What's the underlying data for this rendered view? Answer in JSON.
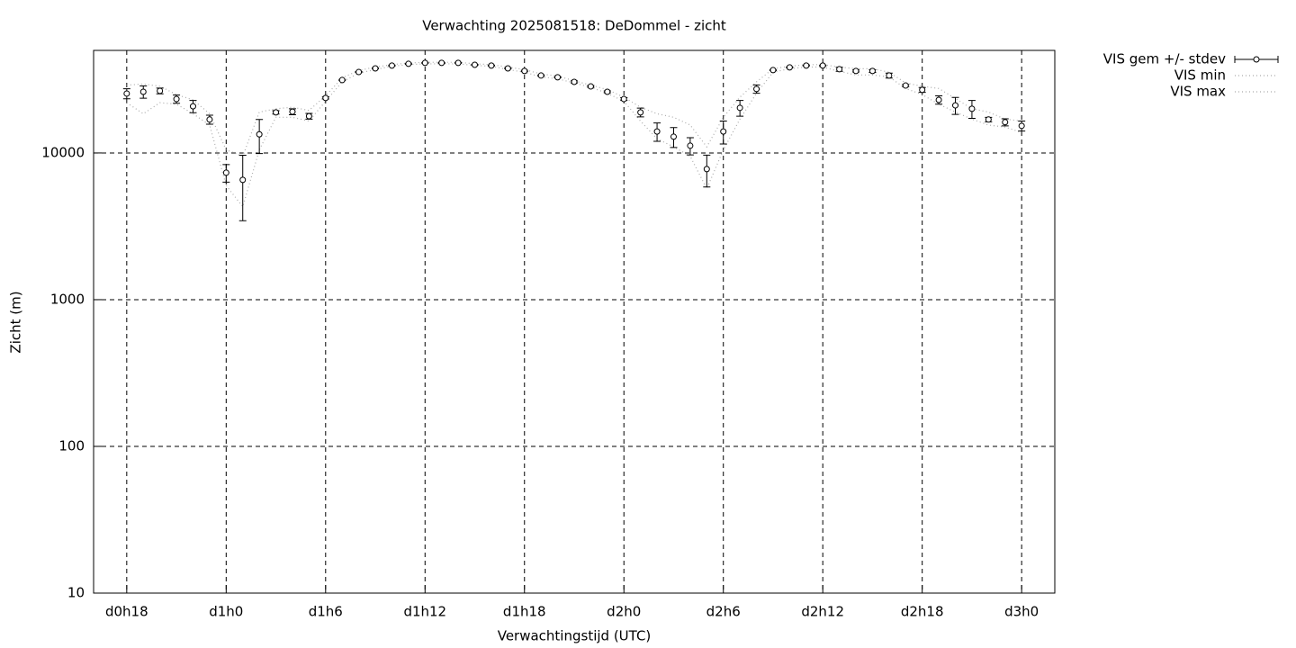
{
  "chart_data": {
    "type": "errorbar-line",
    "title": "Verwachting 2025081518: DeDommel - zicht",
    "x_label": "Verwachtingstijd (UTC)",
    "y_label": "Zicht (m)",
    "x": [
      18,
      19,
      20,
      21,
      22,
      23,
      24,
      25,
      26,
      27,
      28,
      29,
      30,
      31,
      32,
      33,
      34,
      35,
      36,
      37,
      38,
      39,
      40,
      41,
      42,
      43,
      44,
      45,
      46,
      47,
      48,
      49,
      50,
      51,
      52,
      53,
      54,
      55,
      56,
      57,
      58,
      59,
      60,
      61,
      62,
      63,
      64,
      65,
      66,
      67,
      68,
      69,
      70,
      71,
      72
    ],
    "series": [
      {
        "name": "VIS gem +/- stdev",
        "color": "#000000",
        "values": [
          25400,
          26100,
          26500,
          23300,
          20800,
          16900,
          7330,
          6550,
          13400,
          18900,
          19100,
          17800,
          23700,
          31400,
          35600,
          37700,
          39400,
          40500,
          41100,
          41100,
          41100,
          39900,
          39400,
          37700,
          36200,
          33700,
          32800,
          30500,
          28400,
          26100,
          23300,
          18900,
          14000,
          12900,
          11200,
          7760,
          14000,
          20300,
          27300,
          36700,
          38300,
          39400,
          39400,
          37200,
          36200,
          36200,
          33700,
          28800,
          26900,
          23000,
          21100,
          20000,
          16900,
          16200,
          15300
        ],
        "errors": [
          2000,
          2500,
          1200,
          1500,
          2000,
          1200,
          1000,
          3100,
          3500,
          500,
          900,
          800,
          400,
          300,
          300,
          300,
          300,
          300,
          300,
          300,
          300,
          300,
          300,
          300,
          400,
          300,
          300,
          500,
          400,
          400,
          500,
          1300,
          2000,
          2000,
          1500,
          1900,
          2500,
          2500,
          1800,
          300,
          300,
          300,
          300,
          1200,
          600,
          800,
          1300,
          500,
          1000,
          1500,
          2800,
          2800,
          600,
          900,
          1200
        ]
      },
      {
        "name": "VIS min",
        "color": "#aaaaaa",
        "values": [
          22000,
          18500,
          22000,
          21500,
          18500,
          15500,
          6000,
          4300,
          10500,
          17500,
          17500,
          16500,
          22500,
          30500,
          35000,
          37000,
          39000,
          40000,
          40500,
          40500,
          40500,
          39500,
          39000,
          37000,
          35500,
          33000,
          32000,
          30000,
          28000,
          25500,
          22500,
          16500,
          12500,
          11000,
          9500,
          5700,
          10500,
          17000,
          25500,
          35500,
          37500,
          38500,
          38500,
          36000,
          34000,
          34000,
          33000,
          27500,
          25000,
          21500,
          19000,
          17000,
          15500,
          15000,
          13800
        ]
      },
      {
        "name": "VIS max",
        "color": "#aaaaaa",
        "values": [
          29000,
          29500,
          28500,
          25000,
          23000,
          18500,
          10500,
          9500,
          19000,
          20000,
          20500,
          19500,
          24500,
          32500,
          36500,
          38500,
          40000,
          41000,
          41500,
          41500,
          41500,
          40500,
          40000,
          38500,
          37000,
          34500,
          33500,
          31000,
          29000,
          27000,
          24000,
          20500,
          18500,
          17500,
          15500,
          11000,
          17500,
          24000,
          30500,
          37500,
          39000,
          40000,
          40000,
          38500,
          37500,
          37500,
          35500,
          30000,
          28500,
          27500,
          23500,
          20000,
          19000,
          17000,
          16500
        ]
      }
    ],
    "xlim": [
      16,
      74
    ],
    "xticks": [
      {
        "value": 18,
        "label": "d0h18"
      },
      {
        "value": 24,
        "label": "d1h0"
      },
      {
        "value": 30,
        "label": "d1h6"
      },
      {
        "value": 36,
        "label": "d1h12"
      },
      {
        "value": 42,
        "label": "d1h18"
      },
      {
        "value": 48,
        "label": "d2h0"
      },
      {
        "value": 54,
        "label": "d2h6"
      },
      {
        "value": 60,
        "label": "d2h12"
      },
      {
        "value": 66,
        "label": "d2h18"
      },
      {
        "value": 72,
        "label": "d3h0"
      }
    ],
    "ylim": [
      10,
      50000
    ],
    "yticks": [
      10,
      100,
      1000,
      10000
    ],
    "y_log": true,
    "grid": true,
    "legend": "outside-top-right"
  }
}
